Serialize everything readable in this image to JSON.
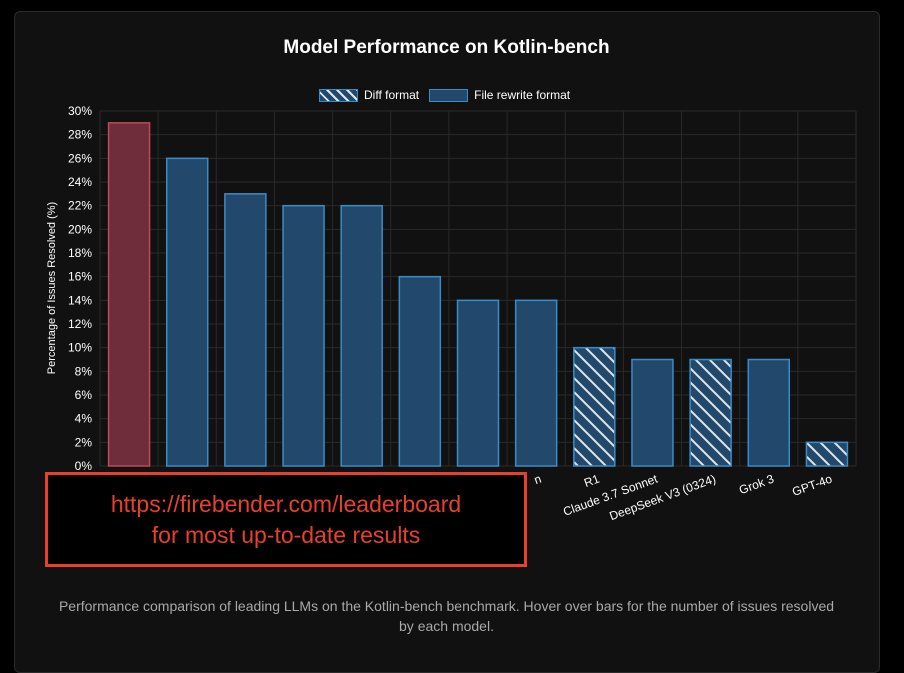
{
  "chart_data": {
    "type": "bar",
    "title": "Model Performance on Kotlin-bench",
    "ylabel": "Percentage of Issues Resolved (%)",
    "ylim": [
      0,
      30
    ],
    "yticks": [
      "0%",
      "2%",
      "4%",
      "6%",
      "8%",
      "10%",
      "12%",
      "14%",
      "16%",
      "18%",
      "20%",
      "22%",
      "24%",
      "26%",
      "28%",
      "30%"
    ],
    "grid": true,
    "legend": [
      {
        "label": "Diff format",
        "pattern": "hatched"
      },
      {
        "label": "File rewrite format",
        "pattern": "solid"
      }
    ],
    "categories": [
      "",
      "",
      "",
      "",
      "",
      "",
      "",
      "n",
      "R1",
      "Claude 3.7 Sonnet",
      "DeepSeek V3 (0324)",
      "Grok 3",
      "GPT-4o"
    ],
    "values": [
      29,
      26,
      23,
      22,
      22,
      16,
      14,
      14,
      10,
      9,
      9,
      9,
      2
    ],
    "formats": [
      "highlight",
      "rewrite",
      "rewrite",
      "rewrite",
      "rewrite",
      "rewrite",
      "rewrite",
      "rewrite",
      "diff",
      "rewrite",
      "diff",
      "rewrite",
      "diff"
    ],
    "colors": {
      "rewrite_fill": "#22496b",
      "rewrite_border": "#3a8cc8",
      "highlight_fill": "#6d2d3a",
      "highlight_border": "#c0485a",
      "hatch_line": "#dfe7ee",
      "grid": "#2a2a2a"
    }
  },
  "overlay": {
    "line1": "https://firebender.com/leaderboard",
    "line2": "for most up-to-date results",
    "color": "#e8402d"
  },
  "caption": "Performance comparison of leading LLMs on the Kotlin-bench benchmark. Hover over bars for the number of issues resolved by each model."
}
